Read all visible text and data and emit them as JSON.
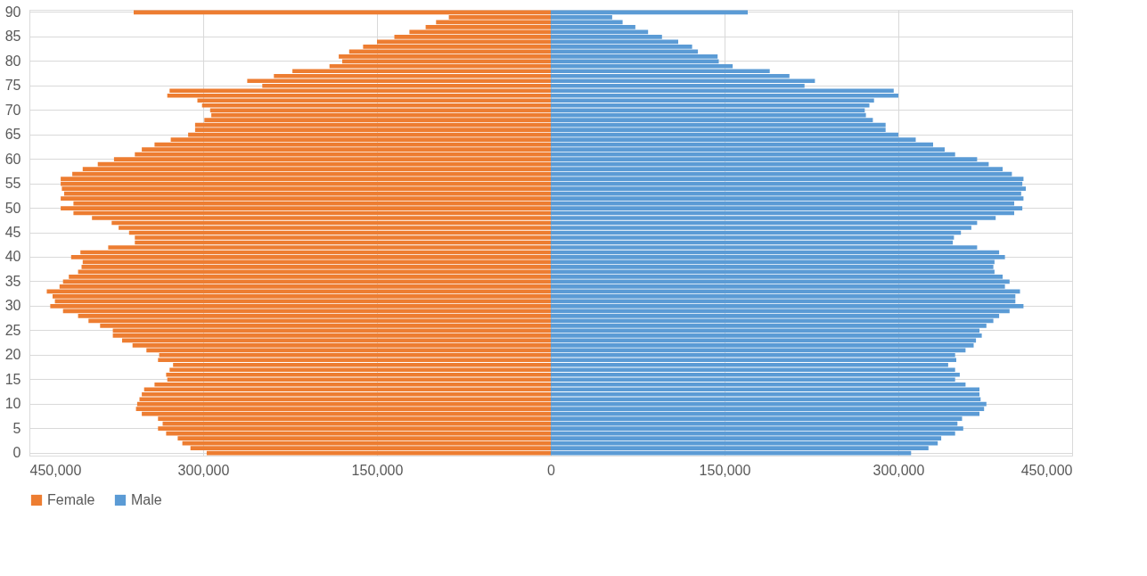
{
  "chart_data": {
    "type": "bar",
    "orientation": "horizontal",
    "categories": [
      "90",
      null,
      null,
      null,
      null,
      "85",
      null,
      null,
      null,
      null,
      "80",
      null,
      null,
      null,
      null,
      "75",
      null,
      null,
      null,
      null,
      "70",
      null,
      null,
      null,
      null,
      "65",
      null,
      null,
      null,
      null,
      "60",
      null,
      null,
      null,
      null,
      "55",
      null,
      null,
      null,
      null,
      "50",
      null,
      null,
      null,
      null,
      "45",
      null,
      null,
      null,
      null,
      "40",
      null,
      null,
      null,
      null,
      "35",
      null,
      null,
      null,
      null,
      "30",
      null,
      null,
      null,
      null,
      "25",
      null,
      null,
      null,
      null,
      "20",
      null,
      null,
      null,
      null,
      "15",
      null,
      null,
      null,
      null,
      "10",
      null,
      null,
      null,
      null,
      "5",
      null,
      null,
      null,
      null,
      "0"
    ],
    "series": [
      {
        "name": "Female",
        "color": "#ed7d31",
        "values": [
          -360000,
          -88000,
          -99000,
          -108000,
          -122000,
          -135000,
          -150000,
          -162000,
          -174000,
          -183000,
          -180000,
          -191000,
          -223000,
          -239000,
          -262000,
          -249000,
          -329000,
          -331000,
          -305000,
          -301000,
          -294000,
          -293000,
          -299000,
          -307000,
          -307000,
          -313000,
          -328000,
          -342000,
          -353000,
          -359000,
          -377000,
          -391000,
          -404000,
          -413000,
          -423000,
          -423000,
          -422000,
          -420000,
          -423000,
          -412000,
          -423000,
          -412000,
          -396000,
          -379000,
          -373000,
          -364000,
          -359000,
          -359000,
          -382000,
          -406000,
          -414000,
          -404000,
          -405000,
          -408000,
          -416000,
          -421000,
          -424000,
          -435000,
          -430000,
          -428000,
          -432000,
          -421000,
          -408000,
          -399000,
          -389000,
          -378000,
          -378000,
          -370000,
          -361000,
          -349000,
          -338000,
          -339000,
          -326000,
          -329000,
          -332000,
          -331000,
          -342000,
          -351000,
          -353000,
          -355000,
          -357000,
          -358000,
          -353000,
          -339000,
          -335000,
          -339000,
          -332000,
          -322000,
          -318000,
          -311000,
          -297000
        ]
      },
      {
        "name": "Male",
        "color": "#5b9bd5",
        "values": [
          170000,
          53000,
          62000,
          73000,
          84000,
          96000,
          110000,
          122000,
          127000,
          144000,
          145000,
          157000,
          189000,
          206000,
          228000,
          219000,
          296000,
          300000,
          279000,
          275000,
          271000,
          272000,
          278000,
          289000,
          289000,
          300000,
          315000,
          330000,
          340000,
          349000,
          368000,
          378000,
          390000,
          398000,
          408000,
          407000,
          410000,
          406000,
          408000,
          400000,
          407000,
          400000,
          384000,
          368000,
          363000,
          354000,
          348000,
          347000,
          368000,
          387000,
          392000,
          383000,
          382000,
          383000,
          390000,
          396000,
          392000,
          405000,
          401000,
          401000,
          408000,
          396000,
          387000,
          382000,
          376000,
          370000,
          372000,
          367000,
          365000,
          358000,
          349000,
          350000,
          343000,
          349000,
          353000,
          349000,
          358000,
          370000,
          370000,
          371000,
          376000,
          374000,
          370000,
          355000,
          351000,
          356000,
          349000,
          337000,
          334000,
          326000,
          311000
        ]
      }
    ],
    "xlim": [
      -450000,
      450000
    ],
    "xticks": [
      {
        "value": -450000,
        "label": "450,000"
      },
      {
        "value": -300000,
        "label": "300,000"
      },
      {
        "value": -150000,
        "label": "150,000"
      },
      0,
      {
        "value": 150000,
        "label": "150,000"
      },
      {
        "value": 300000,
        "label": "300,000"
      },
      {
        "value": 450000,
        "label": "450,000"
      }
    ],
    "grid": true,
    "legend": "bottom",
    "stacked": true
  }
}
